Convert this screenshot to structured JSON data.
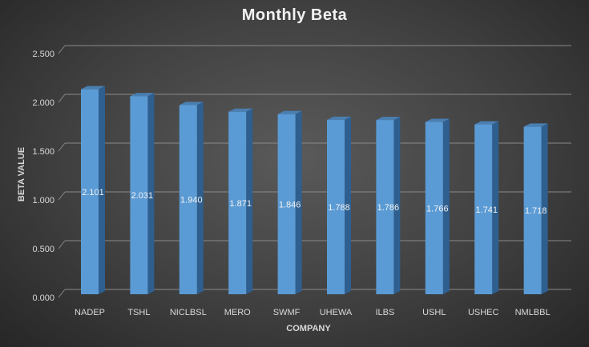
{
  "chart_data": {
    "type": "bar",
    "title": "Monthly Beta",
    "xlabel": "COMPANY",
    "ylabel": "BETA VALUE",
    "categories": [
      "NADEP",
      "TSHL",
      "NICLBSL",
      "MERO",
      "SWMF",
      "UHEWA",
      "ILBS",
      "USHL",
      "USHEC",
      "NMLBBL"
    ],
    "values": [
      2.101,
      2.031,
      1.94,
      1.871,
      1.846,
      1.788,
      1.786,
      1.766,
      1.741,
      1.718
    ],
    "data_labels": [
      "2.101",
      "2.031",
      "1.940",
      "1.871",
      "1.846",
      "1.788",
      "1.786",
      "1.766",
      "1.741",
      "1.718"
    ],
    "ylim": [
      0,
      2.5
    ],
    "yticks": [
      "0.000",
      "0.500",
      "1.000",
      "1.500",
      "2.000",
      "2.500"
    ],
    "grid": true,
    "legend": "none",
    "bar_color": "#5b9bd5",
    "bar_side_color": "#2e5f8f",
    "bar_top_color": "#4a7fb2"
  }
}
